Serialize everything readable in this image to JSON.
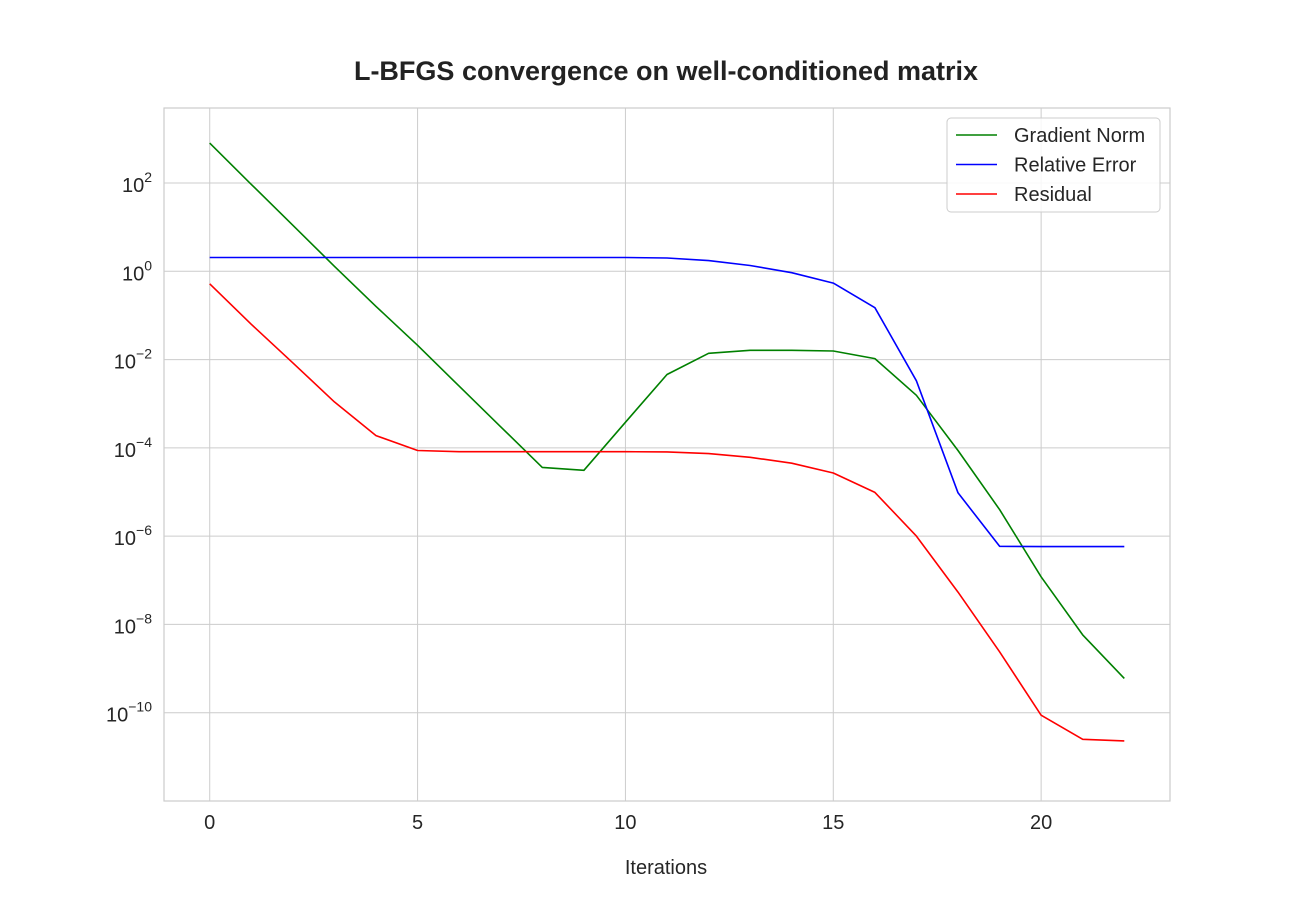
{
  "chart_data": {
    "type": "line",
    "title": "L-BFGS convergence on well-conditioned matrix",
    "xlabel": "Iterations",
    "ylabel": "",
    "xscale": "linear",
    "yscale": "log",
    "xlim": [
      -1.1,
      23.1
    ],
    "ylim": [
      1e-12,
      5000.0
    ],
    "xticks": [
      0,
      5,
      10,
      15,
      20
    ],
    "yticks": [
      {
        "value": 100.0,
        "base": "10",
        "exp": "2"
      },
      {
        "value": 1.0,
        "base": "10",
        "exp": "0"
      },
      {
        "value": 0.01,
        "base": "10",
        "exp": "−2"
      },
      {
        "value": 0.0001,
        "base": "10",
        "exp": "−4"
      },
      {
        "value": 1e-06,
        "base": "10",
        "exp": "−6"
      },
      {
        "value": 1e-08,
        "base": "10",
        "exp": "−8"
      },
      {
        "value": 1e-10,
        "base": "10",
        "exp": "−10"
      }
    ],
    "grid": true,
    "legend_position": "top-right",
    "x": [
      0,
      1,
      2,
      3,
      4,
      5,
      6,
      7,
      8,
      9,
      10,
      11,
      12,
      13,
      14,
      15,
      16,
      17,
      18,
      19,
      20,
      21,
      22
    ],
    "series": [
      {
        "name": "Gradient Norm",
        "color": "#008000",
        "values": [
          800,
          93,
          11,
          1.3,
          0.16,
          0.021,
          0.0025,
          0.0003,
          3.6e-05,
          3.1e-05,
          0.00038,
          0.0046,
          0.0139,
          0.0162,
          0.0162,
          0.0156,
          0.0105,
          0.00155,
          8.7e-05,
          4e-06,
          1.2e-07,
          5.8e-09,
          6e-10
        ]
      },
      {
        "name": "Relative Error",
        "color": "#0000ff",
        "values": [
          2.05,
          2.05,
          2.05,
          2.05,
          2.05,
          2.05,
          2.05,
          2.05,
          2.05,
          2.05,
          2.05,
          2.0,
          1.75,
          1.35,
          0.93,
          0.54,
          0.15,
          0.0033,
          9.6e-06,
          5.9e-07,
          5.8e-07,
          5.8e-07,
          5.8e-07
        ]
      },
      {
        "name": "Residual",
        "color": "#ff0000",
        "values": [
          0.52,
          0.063,
          0.0084,
          0.0011,
          0.00019,
          8.7e-05,
          8.2e-05,
          8.2e-05,
          8.2e-05,
          8.2e-05,
          8.2e-05,
          8.1e-05,
          7.4e-05,
          6.1e-05,
          4.5e-05,
          2.7e-05,
          9.8e-06,
          1e-06,
          5.4e-08,
          2.4e-09,
          8.8e-11,
          2.5e-11,
          2.3e-11
        ]
      }
    ]
  }
}
